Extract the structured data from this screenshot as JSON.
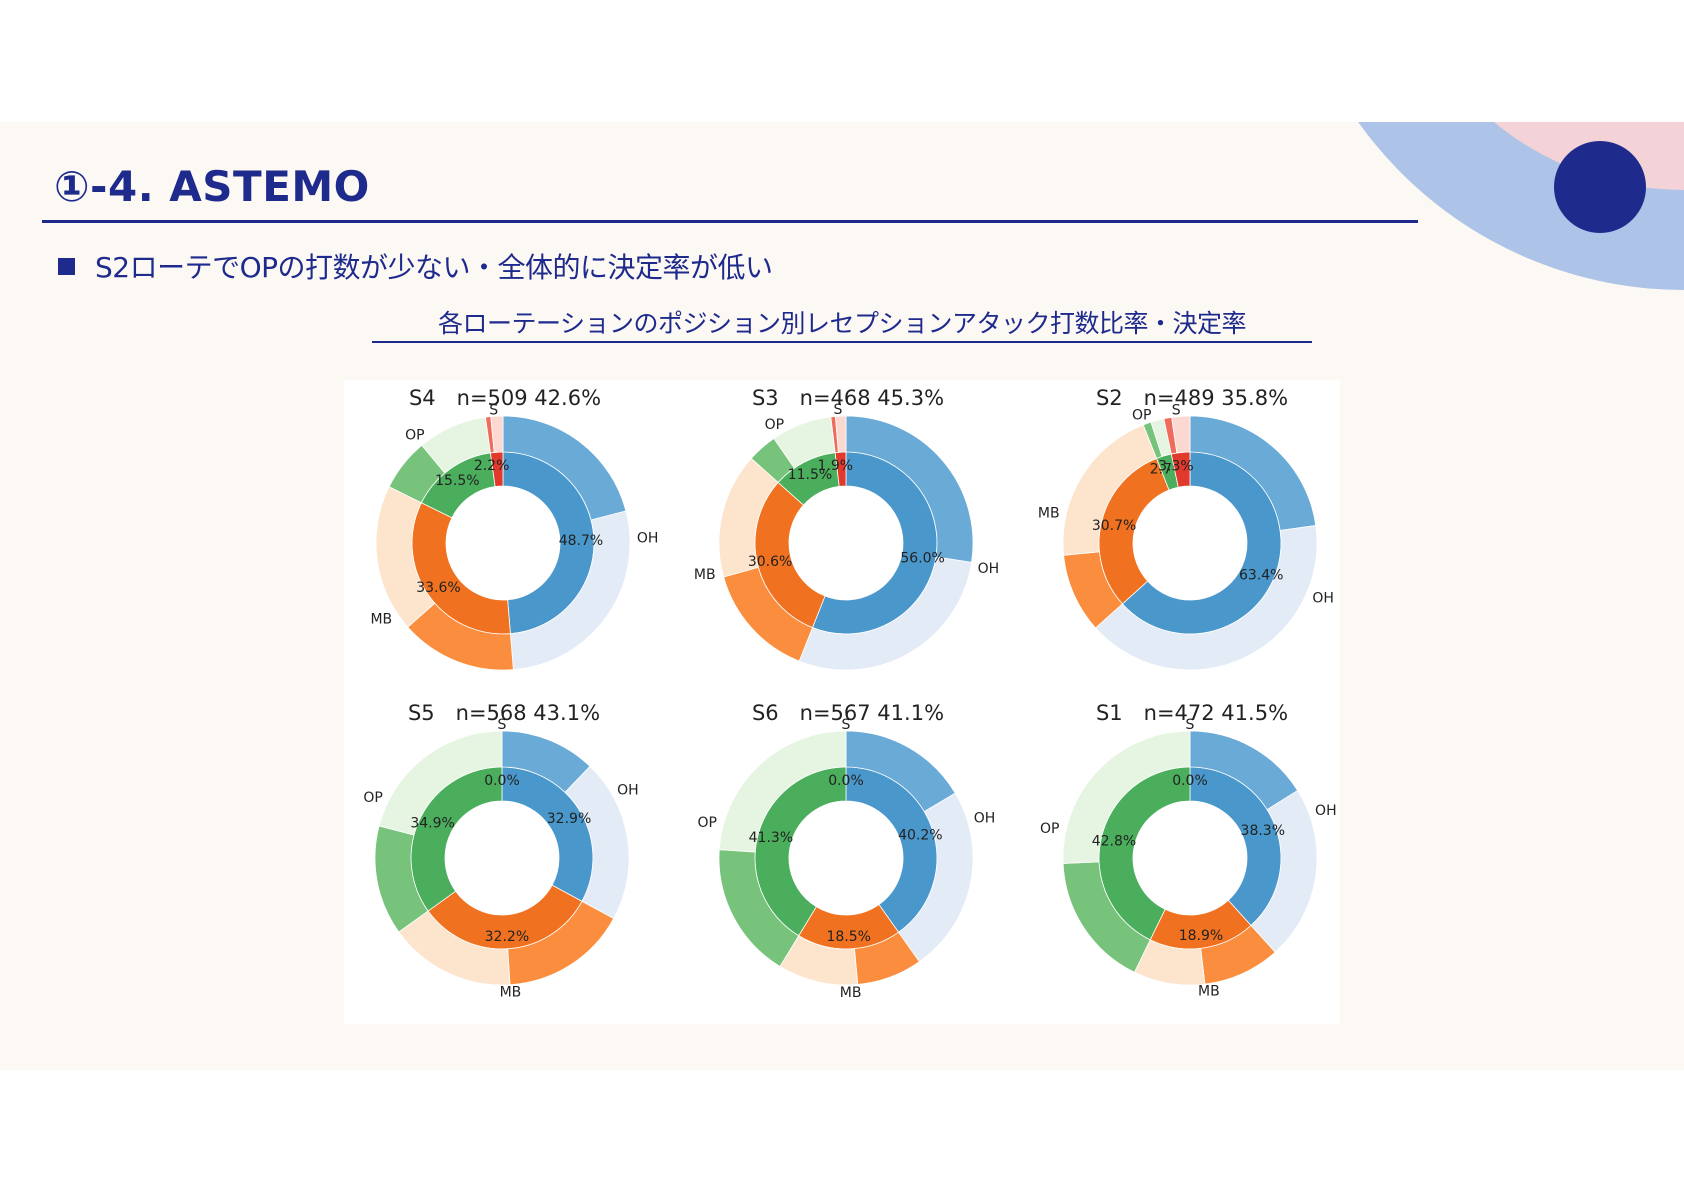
{
  "header": {
    "title": "①-4. ASTEMO",
    "bullet": "S2ローテでOPの打数が少ない・全体的に決定率が低い",
    "chart_title": "各ローテーションのポジション別レセプションアタック打数比率・決定率"
  },
  "colors": {
    "navy": "#1e2a8c",
    "OH": "#4a97cb",
    "OH_light": "#6aaad6",
    "OH_pale": "#e3ebf6",
    "MB": "#f0711f",
    "MB_light": "#fb8e3e",
    "MB_pale": "#fde4cc",
    "OP": "#4bae5c",
    "OP_light": "#78c37c",
    "OP_pale": "#e6f5e1",
    "S": "#e2392d",
    "S_light": "#ef6b5c",
    "S_pale": "#fcd9d0"
  },
  "chart_data": [
    {
      "type": "pie",
      "rotation": "S4",
      "n": 509,
      "rate": "42.6%",
      "title": "S4　n=509  42.6%",
      "categories": [
        "OH",
        "MB",
        "OP",
        "S"
      ],
      "values": [
        48.7,
        33.6,
        15.5,
        2.2
      ],
      "value_labels": [
        "48.7%",
        "33.6%",
        "15.5%",
        "2.2%"
      ],
      "outer_success_fraction": [
        0.43,
        0.44,
        0.43,
        0.3
      ]
    },
    {
      "type": "pie",
      "rotation": "S3",
      "n": 468,
      "rate": "45.3%",
      "title": "S3　n=468  45.3%",
      "categories": [
        "OH",
        "MB",
        "OP",
        "S"
      ],
      "values": [
        56.0,
        30.6,
        11.5,
        1.9
      ],
      "value_labels": [
        "56.0%",
        "30.6%",
        "11.5%",
        "1.9%"
      ],
      "outer_success_fraction": [
        0.49,
        0.48,
        0.33,
        0.3
      ]
    },
    {
      "type": "pie",
      "rotation": "S2",
      "n": 489,
      "rate": "35.8%",
      "title": "S2　n=489  35.8%",
      "categories": [
        "OH",
        "MB",
        "OP",
        "S"
      ],
      "values": [
        63.4,
        30.7,
        2.7,
        3.3
      ],
      "value_labels": [
        "63.4%",
        "30.7%",
        "2.7%",
        "3.3%"
      ],
      "outer_success_fraction": [
        0.36,
        0.33,
        0.38,
        0.3
      ]
    },
    {
      "type": "pie",
      "rotation": "S5",
      "n": 568,
      "rate": "43.1%",
      "title": "S5　n=568  43.1%",
      "categories": [
        "OH",
        "MB",
        "OP",
        "S"
      ],
      "values": [
        32.9,
        32.2,
        34.9,
        0.0
      ],
      "value_labels": [
        "32.9%",
        "32.2%",
        "34.9%",
        "0.0%"
      ],
      "outer_success_fraction": [
        0.37,
        0.5,
        0.4,
        0
      ]
    },
    {
      "type": "pie",
      "rotation": "S6",
      "n": 567,
      "rate": "41.1%",
      "title": "S6　n=567  41.1%",
      "categories": [
        "OH",
        "MB",
        "OP",
        "S"
      ],
      "values": [
        40.2,
        18.5,
        41.3,
        0.0
      ],
      "value_labels": [
        "40.2%",
        "18.5%",
        "41.3%",
        "0.0%"
      ],
      "outer_success_fraction": [
        0.41,
        0.45,
        0.42,
        0
      ]
    },
    {
      "type": "pie",
      "rotation": "S1",
      "n": 472,
      "rate": "41.5%",
      "title": "S1　n=472  41.5%",
      "categories": [
        "OH",
        "MB",
        "OP",
        "S"
      ],
      "values": [
        38.3,
        18.9,
        42.8,
        0.0
      ],
      "value_labels": [
        "38.3%",
        "18.9%",
        "42.8%",
        "0.0%"
      ],
      "outer_success_fraction": [
        0.42,
        0.52,
        0.4,
        0
      ]
    }
  ]
}
